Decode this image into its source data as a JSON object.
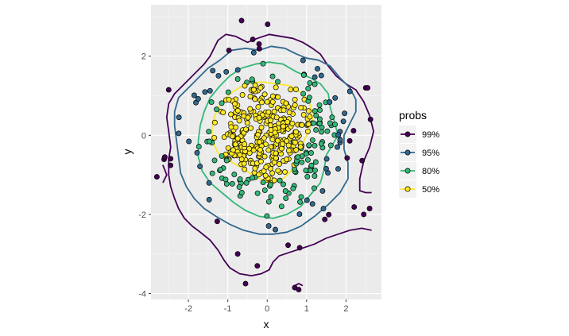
{
  "chart_data": {
    "type": "scatter",
    "subtype": "2d-density-contour-with-points",
    "title": "",
    "xlabel": "x",
    "ylabel": "y",
    "xlim": [
      -2.95,
      2.9
    ],
    "ylim": [
      -4.15,
      3.3
    ],
    "x_ticks": [
      -2,
      -1,
      0,
      1,
      2
    ],
    "y_ticks": [
      -4,
      -2,
      0,
      2
    ],
    "x_tick_labels": [
      "-2",
      "-1",
      "0",
      "1",
      "2"
    ],
    "y_tick_labels": [
      "-4",
      "-2",
      "0",
      "2"
    ],
    "grid": true,
    "background": "#ebebeb",
    "legend": {
      "title": "probs",
      "placement": "right",
      "entries": [
        {
          "label": "99%",
          "color": "#440154"
        },
        {
          "label": "95%",
          "color": "#31688e"
        },
        {
          "label": "80%",
          "color": "#35b779"
        },
        {
          "label": "50%",
          "color": "#fde725"
        }
      ]
    },
    "contours": [
      {
        "level": "99%",
        "color": "#440154",
        "segments": [
          [
            [
              -1.35,
              2.2
            ],
            [
              -1.25,
              2.4
            ],
            [
              -1.05,
              2.55
            ],
            [
              -0.8,
              2.5
            ],
            [
              -0.5,
              2.35
            ],
            [
              -0.25,
              2.45
            ],
            [
              0.05,
              2.55
            ],
            [
              0.35,
              2.5
            ],
            [
              0.65,
              2.45
            ],
            [
              0.9,
              2.35
            ],
            [
              1.15,
              2.2
            ],
            [
              1.35,
              2.05
            ],
            [
              1.55,
              1.75
            ],
            [
              1.75,
              1.5
            ],
            [
              2.0,
              1.3
            ],
            [
              2.25,
              1.15
            ],
            [
              2.45,
              0.85
            ],
            [
              2.6,
              0.5
            ],
            [
              2.7,
              0.1
            ],
            [
              2.6,
              -0.3
            ],
            [
              2.45,
              -0.65
            ],
            [
              2.35,
              -1.1
            ],
            [
              2.35,
              -1.4
            ],
            [
              2.5,
              -1.45
            ],
            [
              2.65,
              -1.45
            ]
          ],
          [
            [
              2.65,
              -2.4
            ],
            [
              2.4,
              -2.35
            ],
            [
              2.1,
              -2.4
            ],
            [
              1.8,
              -2.5
            ],
            [
              1.5,
              -2.6
            ],
            [
              1.2,
              -2.75
            ],
            [
              0.9,
              -2.85
            ],
            [
              0.6,
              -2.95
            ],
            [
              0.3,
              -3.05
            ],
            [
              0.15,
              -3.2
            ],
            [
              0.05,
              -3.4
            ],
            [
              -0.15,
              -3.5
            ],
            [
              -0.4,
              -3.55
            ],
            [
              -0.7,
              -3.5
            ],
            [
              -0.95,
              -3.35
            ],
            [
              -1.1,
              -3.15
            ],
            [
              -1.25,
              -2.9
            ],
            [
              -1.45,
              -2.65
            ],
            [
              -1.7,
              -2.45
            ],
            [
              -1.9,
              -2.3
            ],
            [
              -2.1,
              -2.1
            ],
            [
              -2.25,
              -1.85
            ],
            [
              -2.35,
              -1.6
            ],
            [
              -2.45,
              -1.3
            ],
            [
              -2.5,
              -1.0
            ],
            [
              -2.5,
              -0.6
            ],
            [
              -2.45,
              -0.3
            ],
            [
              -2.5,
              0.1
            ],
            [
              -2.55,
              0.45
            ],
            [
              -2.5,
              0.8
            ],
            [
              -2.35,
              1.05
            ],
            [
              -2.1,
              1.3
            ],
            [
              -1.85,
              1.55
            ],
            [
              -1.6,
              1.8
            ],
            [
              -1.45,
              2.0
            ],
            [
              -1.35,
              2.2
            ]
          ],
          [
            [
              -2.65,
              -0.75
            ],
            [
              -2.55,
              -1.0
            ],
            [
              -2.65,
              -1.2
            ]
          ],
          [
            [
              0.7,
              -3.8
            ],
            [
              0.8,
              -3.75
            ],
            [
              0.9,
              -3.8
            ]
          ]
        ]
      },
      {
        "level": "95%",
        "color": "#31688e",
        "segments": [
          [
            [
              -1.2,
              1.9
            ],
            [
              -0.9,
              2.15
            ],
            [
              -0.55,
              2.2
            ],
            [
              -0.2,
              2.15
            ],
            [
              0.1,
              2.25
            ],
            [
              0.45,
              2.2
            ],
            [
              0.75,
              2.05
            ],
            [
              1.0,
              1.95
            ],
            [
              1.3,
              1.9
            ],
            [
              1.6,
              1.75
            ],
            [
              1.85,
              1.45
            ],
            [
              2.1,
              1.2
            ],
            [
              2.25,
              0.9
            ],
            [
              2.25,
              0.6
            ],
            [
              2.1,
              0.3
            ],
            [
              1.95,
              0.0
            ],
            [
              1.95,
              -0.35
            ],
            [
              2.05,
              -0.7
            ],
            [
              2.05,
              -1.1
            ],
            [
              1.85,
              -1.45
            ],
            [
              1.55,
              -1.75
            ],
            [
              1.2,
              -2.05
            ],
            [
              0.85,
              -2.3
            ],
            [
              0.5,
              -2.45
            ],
            [
              0.15,
              -2.5
            ],
            [
              -0.2,
              -2.5
            ],
            [
              -0.6,
              -2.4
            ],
            [
              -0.95,
              -2.25
            ],
            [
              -1.3,
              -2.05
            ],
            [
              -1.6,
              -1.85
            ],
            [
              -1.85,
              -1.6
            ],
            [
              -2.05,
              -1.3
            ],
            [
              -2.2,
              -0.95
            ],
            [
              -2.25,
              -0.55
            ],
            [
              -2.3,
              -0.15
            ],
            [
              -2.35,
              0.25
            ],
            [
              -2.35,
              0.6
            ],
            [
              -2.25,
              0.95
            ],
            [
              -2.0,
              1.2
            ],
            [
              -1.75,
              1.45
            ],
            [
              -1.5,
              1.7
            ],
            [
              -1.2,
              1.9
            ]
          ]
        ]
      },
      {
        "level": "80%",
        "color": "#35b779",
        "segments": [
          [
            [
              -0.65,
              1.7
            ],
            [
              -0.3,
              1.8
            ],
            [
              0.05,
              1.85
            ],
            [
              0.4,
              1.8
            ],
            [
              0.75,
              1.6
            ],
            [
              1.1,
              1.45
            ],
            [
              1.35,
              1.3
            ],
            [
              1.55,
              1.05
            ],
            [
              1.6,
              0.7
            ],
            [
              1.7,
              0.35
            ],
            [
              1.8,
              0.0
            ],
            [
              1.65,
              -0.25
            ],
            [
              1.5,
              -0.5
            ],
            [
              1.45,
              -0.85
            ],
            [
              1.35,
              -1.2
            ],
            [
              1.1,
              -1.5
            ],
            [
              0.85,
              -1.8
            ],
            [
              0.5,
              -2.0
            ],
            [
              0.15,
              -2.1
            ],
            [
              -0.2,
              -2.05
            ],
            [
              -0.55,
              -1.9
            ],
            [
              -0.85,
              -1.7
            ],
            [
              -1.15,
              -1.45
            ],
            [
              -1.45,
              -1.2
            ],
            [
              -1.65,
              -0.9
            ],
            [
              -1.75,
              -0.55
            ],
            [
              -1.75,
              -0.15
            ],
            [
              -1.7,
              0.25
            ],
            [
              -1.6,
              0.6
            ],
            [
              -1.45,
              0.95
            ],
            [
              -1.2,
              1.25
            ],
            [
              -0.95,
              1.5
            ],
            [
              -0.65,
              1.7
            ]
          ]
        ]
      },
      {
        "level": "50%",
        "color": "#fde725",
        "segments": [
          [
            [
              -0.95,
              1.05
            ],
            [
              -0.55,
              1.3
            ],
            [
              -0.15,
              1.35
            ],
            [
              0.25,
              1.3
            ],
            [
              0.6,
              1.25
            ],
            [
              0.9,
              1.05
            ],
            [
              1.1,
              0.75
            ],
            [
              1.15,
              0.4
            ],
            [
              1.05,
              0.1
            ],
            [
              0.9,
              -0.2
            ],
            [
              0.8,
              -0.5
            ],
            [
              0.65,
              -0.85
            ],
            [
              0.4,
              -1.1
            ],
            [
              0.05,
              -1.2
            ],
            [
              -0.3,
              -1.05
            ],
            [
              -0.6,
              -0.85
            ],
            [
              -0.95,
              -0.65
            ],
            [
              -1.25,
              -0.45
            ],
            [
              -1.4,
              -0.1
            ],
            [
              -1.4,
              0.3
            ],
            [
              -1.25,
              0.7
            ],
            [
              -0.95,
              1.05
            ]
          ]
        ]
      }
    ],
    "points_note": "Points are colored by the innermost contour region containing them: 50% yellow, 80% green, 95% blue, 99% purple."
  }
}
